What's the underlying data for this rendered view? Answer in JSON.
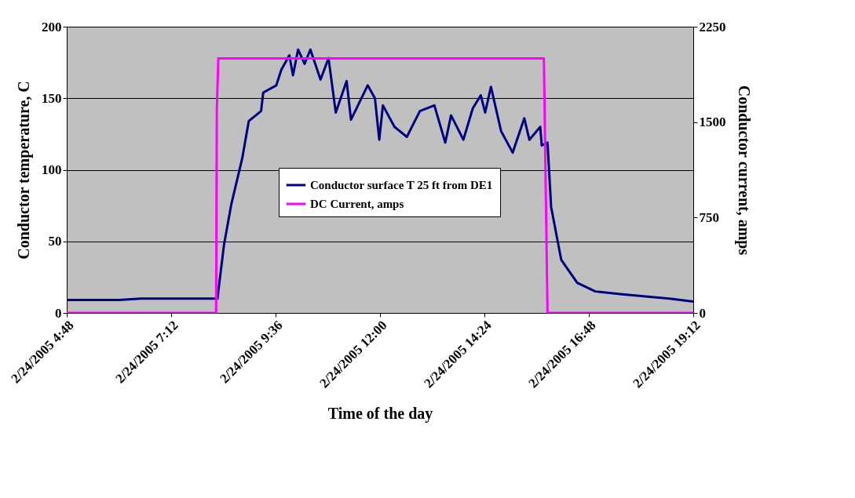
{
  "chart_data": {
    "type": "line",
    "xlabel": "Time of the day",
    "ylabel": "Conductor temperature, C",
    "y2label": "Conductor current, amps",
    "xlim": [
      "2005-02-24T04:48",
      "2005-02-24T19:12"
    ],
    "xticks": [
      {
        "value": "2005-02-24T04:48",
        "label": "2/24/2005 4:48"
      },
      {
        "value": "2005-02-24T07:12",
        "label": "2/24/2005 7:12"
      },
      {
        "value": "2005-02-24T09:36",
        "label": "2/24/2005 9:36"
      },
      {
        "value": "2005-02-24T12:00",
        "label": "2/24/2005 12:00"
      },
      {
        "value": "2005-02-24T14:24",
        "label": "2/24/2005 14:24"
      },
      {
        "value": "2005-02-24T16:48",
        "label": "2/24/2005 16:48"
      },
      {
        "value": "2005-02-24T19:12",
        "label": "2/24/2005 19:12"
      }
    ],
    "ylim": [
      0,
      200
    ],
    "yticks": [
      0,
      50,
      100,
      150,
      200
    ],
    "y2lim": [
      0,
      2250
    ],
    "y2ticks": [
      0,
      750,
      1500,
      2250
    ],
    "grid": "y",
    "legend": "center",
    "series": [
      {
        "name": "Conductor surface T 25 ft from DE1",
        "color": "#000080",
        "x": [
          "2005-02-24T04:48",
          "2005-02-24T06:00",
          "2005-02-24T06:30",
          "2005-02-24T07:30",
          "2005-02-24T08:00",
          "2005-02-24T08:16",
          "2005-02-24T08:17",
          "2005-02-24T08:25",
          "2005-02-24T08:35",
          "2005-02-24T08:50",
          "2005-02-24T08:59",
          "2005-02-24T09:16",
          "2005-02-24T09:19",
          "2005-02-24T09:37",
          "2005-02-24T09:44",
          "2005-02-24T09:55",
          "2005-02-24T10:00",
          "2005-02-24T10:07",
          "2005-02-24T10:16",
          "2005-02-24T10:24",
          "2005-02-24T10:38",
          "2005-02-24T10:49",
          "2005-02-24T10:59",
          "2005-02-24T11:14",
          "2005-02-24T11:20",
          "2005-02-24T11:43",
          "2005-02-24T11:53",
          "2005-02-24T11:59",
          "2005-02-24T12:04",
          "2005-02-24T12:20",
          "2005-02-24T12:37",
          "2005-02-24T12:55",
          "2005-02-24T13:15",
          "2005-02-24T13:30",
          "2005-02-24T13:38",
          "2005-02-24T13:55",
          "2005-02-24T14:08",
          "2005-02-24T14:19",
          "2005-02-24T14:25",
          "2005-02-24T14:33",
          "2005-02-24T14:47",
          "2005-02-24T15:03",
          "2005-02-24T15:19",
          "2005-02-24T15:26",
          "2005-02-24T15:41",
          "2005-02-24T15:43",
          "2005-02-24T15:51",
          "2005-02-24T15:56",
          "2005-02-24T16:10",
          "2005-02-24T16:32",
          "2005-02-24T16:57",
          "2005-02-24T17:34",
          "2005-02-24T18:39",
          "2005-02-24T19:12"
        ],
        "values": [
          9,
          9,
          10,
          10,
          10,
          10,
          15,
          48,
          76,
          108,
          134,
          141,
          154,
          159,
          170,
          180,
          166,
          184,
          174,
          184,
          163,
          178,
          140,
          162,
          135,
          159,
          150,
          121,
          145,
          130,
          123,
          141,
          145,
          119,
          138,
          121,
          143,
          152,
          140,
          158,
          127,
          112,
          136,
          121,
          130,
          117,
          119,
          74,
          37,
          21,
          15,
          13,
          10,
          8
        ]
      },
      {
        "name": "DC Current, amps",
        "color": "#ff00ff",
        "axis": "y2",
        "x": [
          "2005-02-24T04:48",
          "2005-02-24T08:14",
          "2005-02-24T08:15",
          "2005-02-24T08:17",
          "2005-02-24T15:46",
          "2005-02-24T15:51",
          "2005-02-24T19:12"
        ],
        "values": [
          0,
          0,
          1600,
          2000,
          2000,
          0,
          0
        ]
      }
    ]
  }
}
